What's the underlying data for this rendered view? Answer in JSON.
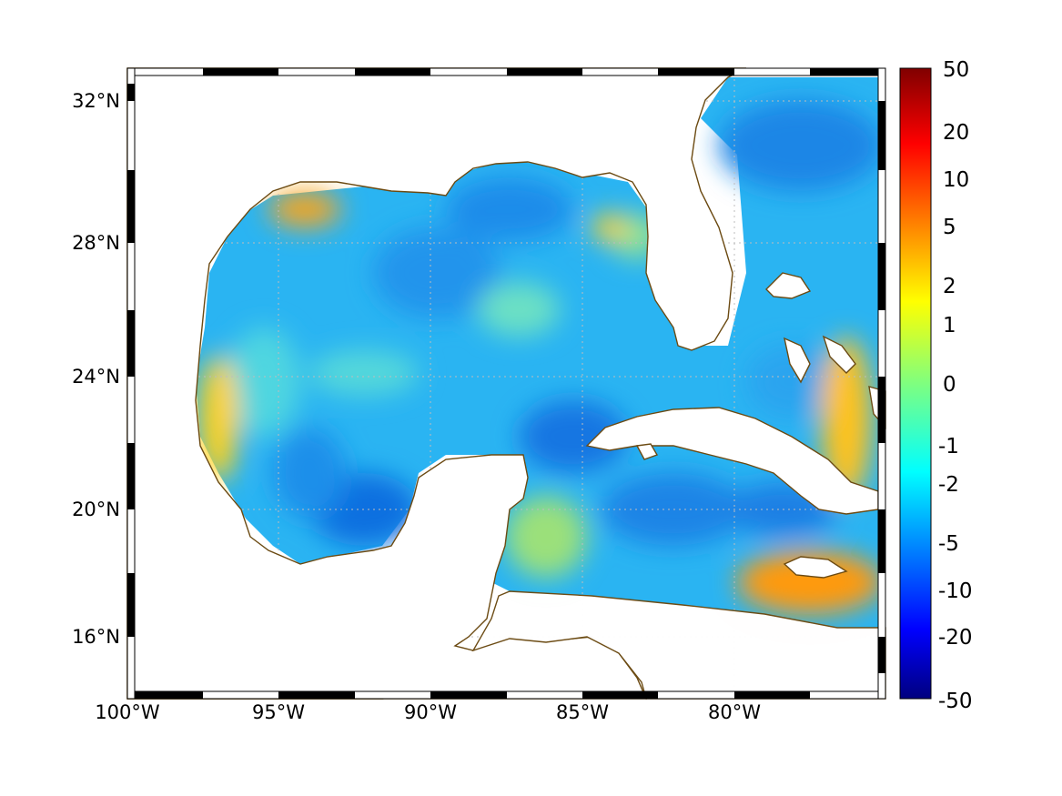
{
  "map": {
    "x_ticks": [
      "100°W",
      "95°W",
      "90°W",
      "85°W",
      "80°W"
    ],
    "y_ticks": [
      "32°N",
      "28°N",
      "24°N",
      "20°N",
      "16°N"
    ],
    "extent": {
      "lon_min": -100,
      "lon_max": -75.2,
      "lat_min": 14.3,
      "lat_max": 33.0
    },
    "coastline_color": "#6b4a12",
    "grid": true
  },
  "colorbar": {
    "labels": [
      "50",
      "20",
      "10",
      "5",
      "2",
      "1",
      "0",
      "-1",
      "-2",
      "-5",
      "-10",
      "-20",
      "-50"
    ],
    "colormap": "jet",
    "top_color": "#800000",
    "bottom_color": "#00007f"
  }
}
